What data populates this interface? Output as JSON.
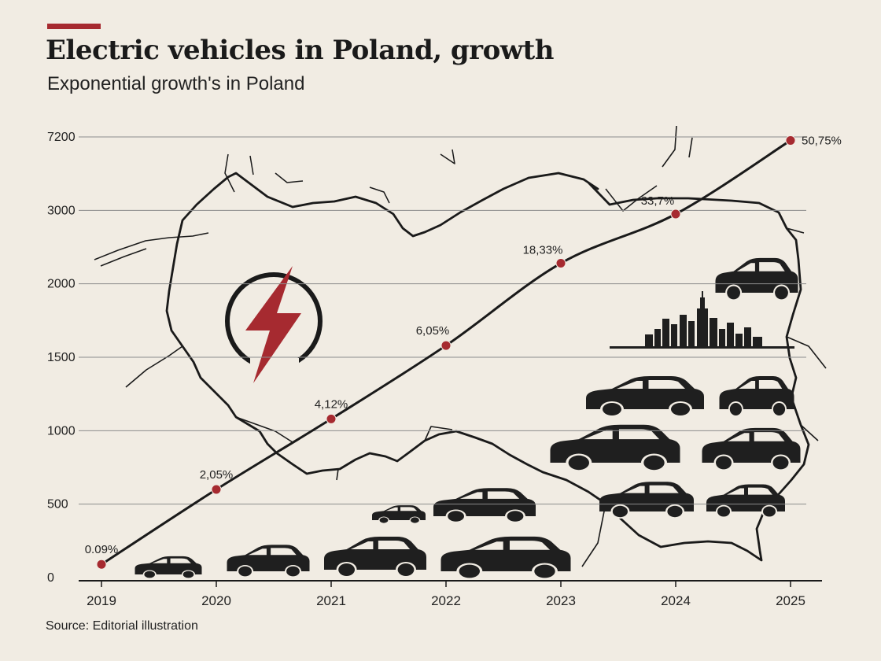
{
  "header": {
    "title": "Electric vehicles in Poland, growth",
    "subtitle": "Exponential growth's in Poland"
  },
  "footer": {
    "source": "Source: Editorial illustration"
  },
  "colors": {
    "accent": "#a62a30",
    "background": "#f1ece3",
    "ink": "#1b1b1b",
    "grid": "#8c8c8c"
  },
  "decor": {
    "map": "poland-outline",
    "emblem": "lightning-bolt-icon",
    "skyline": "city-skyline",
    "cars": "car-silhouettes"
  },
  "chart_data": {
    "type": "line",
    "title": "Electric vehicles in Poland, growth",
    "subtitle": "Exponential growth's in Poland",
    "xlabel": "",
    "ylabel": "",
    "grid": true,
    "legend": "none",
    "x": [
      "2019",
      "2020",
      "2021",
      "2022",
      "2023",
      "2024",
      "2025"
    ],
    "y_ticks": [
      "0",
      "500",
      "1000",
      "1500",
      "2000",
      "3000",
      "7200"
    ],
    "y_scale": "non-linear (printed tick values at evenly spaced gridlines)",
    "series": [
      {
        "values": [
          90,
          600,
          1080,
          1580,
          2280,
          2950,
          7000
        ],
        "labels": [
          "0.09%",
          "2,05%",
          "4,12%",
          "6,05%",
          "18,33%",
          "33,7%",
          "50,75%"
        ]
      }
    ]
  }
}
